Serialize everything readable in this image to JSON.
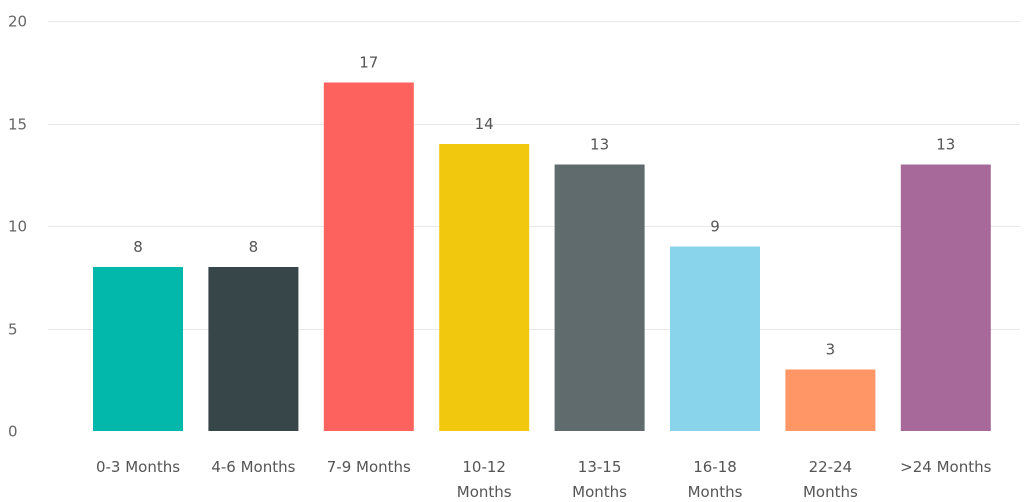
{
  "chart_data": {
    "type": "bar",
    "title": "",
    "xlabel": "",
    "ylabel": "",
    "ylim": [
      0,
      20
    ],
    "y_ticks": [
      0,
      5,
      10,
      15,
      20
    ],
    "grid": true,
    "data_labels": true,
    "categories": [
      [
        "0-3 Months"
      ],
      [
        "4-6 Months"
      ],
      [
        "7-9 Months"
      ],
      [
        "10-12",
        "Months"
      ],
      [
        "13-15",
        "Months"
      ],
      [
        "16-18",
        "Months"
      ],
      [
        "22-24",
        "Months"
      ],
      [
        ">24 Months"
      ]
    ],
    "values": [
      8,
      8,
      17,
      14,
      13,
      9,
      3,
      13
    ],
    "colors": [
      "#01b8aa",
      "#374649",
      "#fd625e",
      "#f2c80f",
      "#5f6b6d",
      "#8ad4eb",
      "#fe9666",
      "#a66999"
    ]
  }
}
